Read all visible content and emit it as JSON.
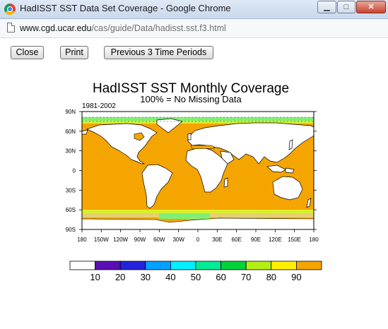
{
  "window": {
    "title": "HadISST SST Data Set Coverage - Google Chrome",
    "minimize_glyph": "▁",
    "maximize_glyph": "□",
    "close_glyph": "✕"
  },
  "address": {
    "host": "www.cgd.ucar.edu",
    "path": "/cas/guide/Data/hadisst.sst.f3.html"
  },
  "buttons": {
    "close": "Close",
    "print": "Print",
    "previous": "Previous 3 Time Periods"
  },
  "figure": {
    "title": "HadISST SST Monthly Coverage",
    "subtitle": "100% = No Missing Data",
    "period": "1981-2002",
    "lat_ticks": [
      "90N",
      "60N",
      "30N",
      "0",
      "30S",
      "60S",
      "90S"
    ],
    "lon_ticks": [
      "180",
      "150W",
      "120W",
      "90W",
      "60W",
      "30W",
      "0",
      "30E",
      "60E",
      "90E",
      "120E",
      "150E",
      "180"
    ]
  },
  "colorbar": {
    "labels": [
      "10",
      "20",
      "30",
      "40",
      "50",
      "60",
      "70",
      "80",
      "90"
    ],
    "colors": [
      "#ffffff",
      "#5a0fb4",
      "#2323dc",
      "#00a0ff",
      "#00f0ff",
      "#00ec96",
      "#00d23c",
      "#b4ee14",
      "#fff000",
      "#f5a500"
    ]
  },
  "colors": {
    "ocean": "#f5a500",
    "land": "#ffffff",
    "coast": "#000000"
  }
}
